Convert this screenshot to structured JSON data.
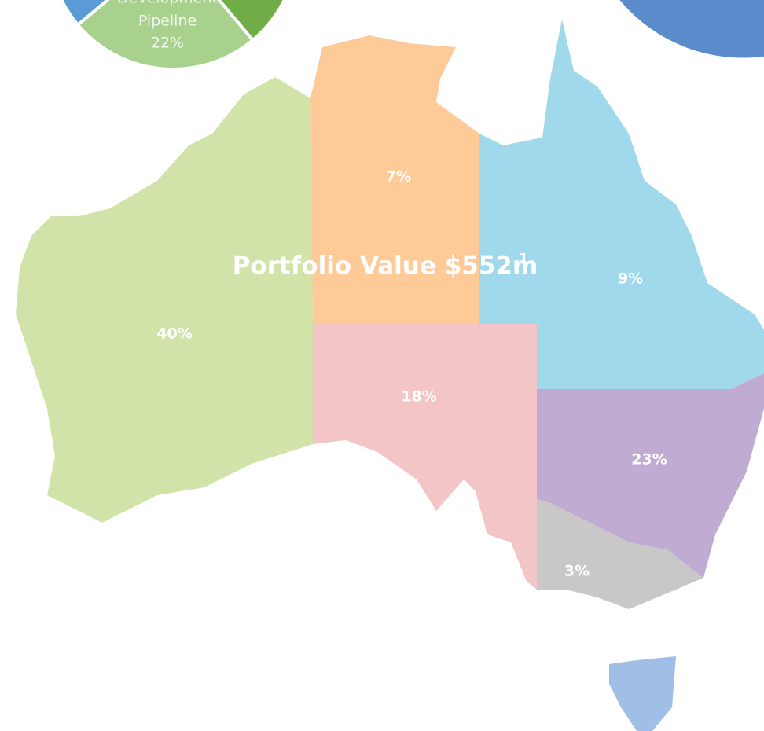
{
  "pie_label": {
    "lines": [
      "Development",
      "Pipeline"
    ],
    "value": "22%"
  },
  "title": {
    "text": "Portfolio Value $552m",
    "superscript": "1"
  },
  "regions": [
    {
      "label": "40%"
    },
    {
      "label": "7%"
    },
    {
      "label": "9%"
    },
    {
      "label": "18%"
    },
    {
      "label": "23%"
    },
    {
      "label": "3%"
    }
  ]
}
